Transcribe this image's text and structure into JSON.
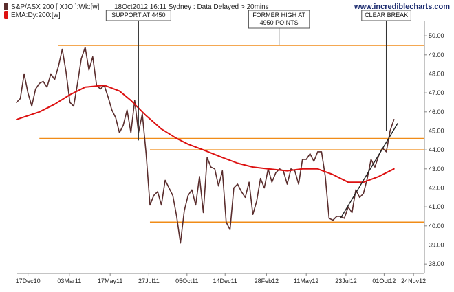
{
  "header": {
    "legend_price": "S&P/ASX 200 [ XJO ]:Wk:[w]",
    "status": "18Oct2012 16:11 Sydney : Data Delayed > 20mins",
    "legend_ema": "EMA:Dy:200:[w]",
    "brand": "www.incrediblecharts.com"
  },
  "colors": {
    "price": "#5a2d2d",
    "ema": "#dd1111",
    "level_lines": "#f08c18",
    "trendline": "#222222",
    "annotation_line": "#333333",
    "axis": "#888888"
  },
  "chart_data": {
    "type": "line",
    "title": "",
    "xlabel": "",
    "ylabel": "",
    "ylim": [
      37.5,
      50.8
    ],
    "x_range": [
      "2010-11-26",
      "2012-12-14"
    ],
    "grid": false,
    "y_axis_side": "right",
    "y_ticks": [
      "38.00",
      "39.00",
      "40.00",
      "41.00",
      "42.00",
      "43.00",
      "44.00",
      "45.00",
      "46.00",
      "47.00",
      "48.00",
      "49.00",
      "50.00"
    ],
    "x_ticks": [
      {
        "date": "2010-12-17",
        "label": "17Dec10"
      },
      {
        "date": "2011-03-03",
        "label": "03Mar11"
      },
      {
        "date": "2011-05-17",
        "label": "17May11"
      },
      {
        "date": "2011-07-27",
        "label": "27Jul11"
      },
      {
        "date": "2011-10-05",
        "label": "05Oct11"
      },
      {
        "date": "2011-12-14",
        "label": "14Dec11"
      },
      {
        "date": "2012-02-28",
        "label": "28Feb12"
      },
      {
        "date": "2012-05-11",
        "label": "11May12"
      },
      {
        "date": "2012-07-23",
        "label": "23Jul12"
      },
      {
        "date": "2012-10-01",
        "label": "01Oct12"
      },
      {
        "date": "2012-11-24",
        "label": "24Nov12"
      }
    ],
    "series": [
      {
        "name": "S&P/ASX 200 [ XJO ]:Wk:[w]",
        "x": [
          "2010-11-26",
          "2010-12-03",
          "2010-12-10",
          "2010-12-17",
          "2010-12-24",
          "2010-12-31",
          "2011-01-07",
          "2011-01-14",
          "2011-01-21",
          "2011-01-28",
          "2011-02-04",
          "2011-02-11",
          "2011-02-18",
          "2011-02-25",
          "2011-03-04",
          "2011-03-11",
          "2011-03-18",
          "2011-03-25",
          "2011-04-01",
          "2011-04-08",
          "2011-04-15",
          "2011-04-22",
          "2011-04-29",
          "2011-05-06",
          "2011-05-13",
          "2011-05-20",
          "2011-05-27",
          "2011-06-03",
          "2011-06-10",
          "2011-06-17",
          "2011-06-24",
          "2011-07-01",
          "2011-07-08",
          "2011-07-15",
          "2011-07-22",
          "2011-07-29",
          "2011-08-05",
          "2011-08-12",
          "2011-08-19",
          "2011-08-26",
          "2011-09-02",
          "2011-09-09",
          "2011-09-16",
          "2011-09-23",
          "2011-09-30",
          "2011-10-07",
          "2011-10-14",
          "2011-10-21",
          "2011-10-28",
          "2011-11-04",
          "2011-11-11",
          "2011-11-18",
          "2011-11-25",
          "2011-12-02",
          "2011-12-09",
          "2011-12-16",
          "2011-12-23",
          "2011-12-30",
          "2012-01-06",
          "2012-01-13",
          "2012-01-20",
          "2012-01-27",
          "2012-02-03",
          "2012-02-10",
          "2012-02-17",
          "2012-02-24",
          "2012-03-02",
          "2012-03-09",
          "2012-03-16",
          "2012-03-23",
          "2012-03-30",
          "2012-04-06",
          "2012-04-13",
          "2012-04-20",
          "2012-04-27",
          "2012-05-04",
          "2012-05-11",
          "2012-05-18",
          "2012-05-25",
          "2012-06-01",
          "2012-06-08",
          "2012-06-15",
          "2012-06-22",
          "2012-06-29",
          "2012-07-06",
          "2012-07-13",
          "2012-07-20",
          "2012-07-27",
          "2012-08-03",
          "2012-08-10",
          "2012-08-17",
          "2012-08-24",
          "2012-08-31",
          "2012-09-07",
          "2012-09-14",
          "2012-09-21",
          "2012-09-28",
          "2012-10-05",
          "2012-10-12",
          "2012-10-19"
        ],
        "y": [
          46.5,
          46.7,
          48.0,
          47.0,
          46.3,
          47.2,
          47.5,
          47.6,
          47.3,
          48.0,
          47.7,
          48.4,
          49.3,
          48.1,
          46.5,
          46.3,
          47.5,
          48.8,
          49.4,
          48.2,
          48.9,
          47.4,
          47.2,
          47.4,
          46.8,
          46.1,
          45.7,
          44.9,
          45.3,
          46.1,
          44.9,
          46.6,
          44.9,
          45.9,
          43.8,
          41.1,
          41.6,
          41.8,
          41.1,
          42.4,
          42.0,
          41.6,
          40.5,
          39.1,
          40.8,
          41.6,
          41.9,
          41.1,
          42.6,
          40.7,
          43.6,
          43.1,
          43.0,
          42.1,
          42.9,
          40.2,
          39.8,
          42.0,
          42.2,
          41.8,
          41.5,
          42.3,
          40.6,
          41.3,
          42.5,
          42.0,
          43.0,
          42.3,
          42.8,
          43.0,
          42.9,
          42.2,
          43.0,
          42.9,
          42.2,
          43.5,
          43.5,
          43.8,
          43.4,
          43.9,
          43.9,
          42.6,
          40.4,
          40.3,
          40.5,
          40.5,
          40.4,
          41.0,
          40.7,
          41.9,
          41.5,
          41.7,
          42.5,
          43.5,
          43.1,
          43.7,
          44.1,
          43.9,
          45.0,
          45.6
        ]
      },
      {
        "name": "EMA:Dy:200:[w]",
        "x": [
          "2010-11-26",
          "2011-01-07",
          "2011-02-04",
          "2011-03-04",
          "2011-04-01",
          "2011-05-06",
          "2011-06-03",
          "2011-06-24",
          "2011-07-22",
          "2011-08-19",
          "2011-09-16",
          "2011-10-07",
          "2011-11-04",
          "2011-12-09",
          "2012-01-06",
          "2012-02-03",
          "2012-03-02",
          "2012-04-06",
          "2012-05-04",
          "2012-06-01",
          "2012-06-29",
          "2012-07-27",
          "2012-08-24",
          "2012-09-21",
          "2012-10-19"
        ],
        "y": [
          45.6,
          46.0,
          46.4,
          46.9,
          47.3,
          47.4,
          47.1,
          46.6,
          45.8,
          45.1,
          44.6,
          44.3,
          44.0,
          43.6,
          43.3,
          43.1,
          43.0,
          42.9,
          43.0,
          43.0,
          42.7,
          42.3,
          42.3,
          42.6,
          43.0
        ]
      }
    ],
    "levels": [
      {
        "value": 49.5,
        "x_start": "2011-02-11",
        "x_end": "2012-12-14"
      },
      {
        "value": 44.6,
        "x_start": "2011-01-07",
        "x_end": "2012-12-14"
      },
      {
        "value": 44.0,
        "x_start": "2011-07-29",
        "x_end": "2012-12-14"
      },
      {
        "value": 40.2,
        "x_start": "2011-07-29",
        "x_end": "2012-12-14"
      }
    ],
    "trendline": {
      "x": [
        "2012-07-13",
        "2012-10-26"
      ],
      "y": [
        40.4,
        45.4
      ]
    },
    "annotations": [
      {
        "lines": [
          "SUPPORT AT 4450"
        ],
        "date": "2011-07-08",
        "y_top": 50.75,
        "y_bottom": 44.5
      },
      {
        "lines": [
          "FORMER HIGH AT",
          "4950 POINTS"
        ],
        "date": "2012-03-22",
        "y_top": 50.75,
        "y_bottom": 49.5
      },
      {
        "lines": [
          "CLEAR BREAK"
        ],
        "date": "2012-10-05",
        "y_top": 50.75,
        "y_bottom": 45.0
      }
    ]
  }
}
